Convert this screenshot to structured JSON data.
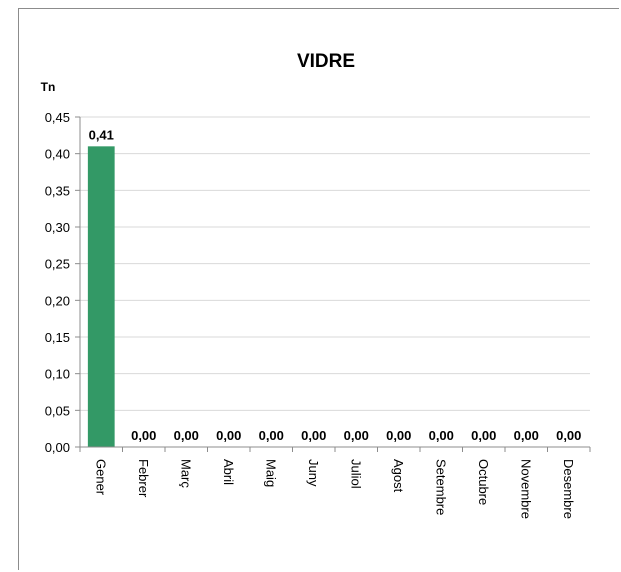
{
  "chart_data": {
    "type": "bar",
    "title": "VIDRE",
    "ylabel": "Tn",
    "xlabel": "",
    "categories": [
      "Gener",
      "Febrer",
      "Març",
      "Abril",
      "Maig",
      "Juny",
      "Juliol",
      "Agost",
      "Setembre",
      "Octubre",
      "Novembre",
      "Desembre"
    ],
    "values": [
      0.41,
      0,
      0,
      0,
      0,
      0,
      0,
      0,
      0,
      0,
      0,
      0
    ],
    "data_labels": [
      "0,41",
      "0,00",
      "0,00",
      "0,00",
      "0,00",
      "0,00",
      "0,00",
      "0,00",
      "0,00",
      "0,00",
      "0,00",
      "0,00"
    ],
    "ylim": [
      0,
      0.45
    ],
    "yticks": [
      "0,00",
      "0,05",
      "0,10",
      "0,15",
      "0,20",
      "0,25",
      "0,30",
      "0,35",
      "0,40",
      "0,45"
    ],
    "ytick_values": [
      0,
      0.05,
      0.1,
      0.15,
      0.2,
      0.25,
      0.3,
      0.35,
      0.4,
      0.45
    ],
    "grid": true,
    "legend": "none",
    "bar_color": "#339966",
    "grid_color": "#d9d9d9"
  }
}
